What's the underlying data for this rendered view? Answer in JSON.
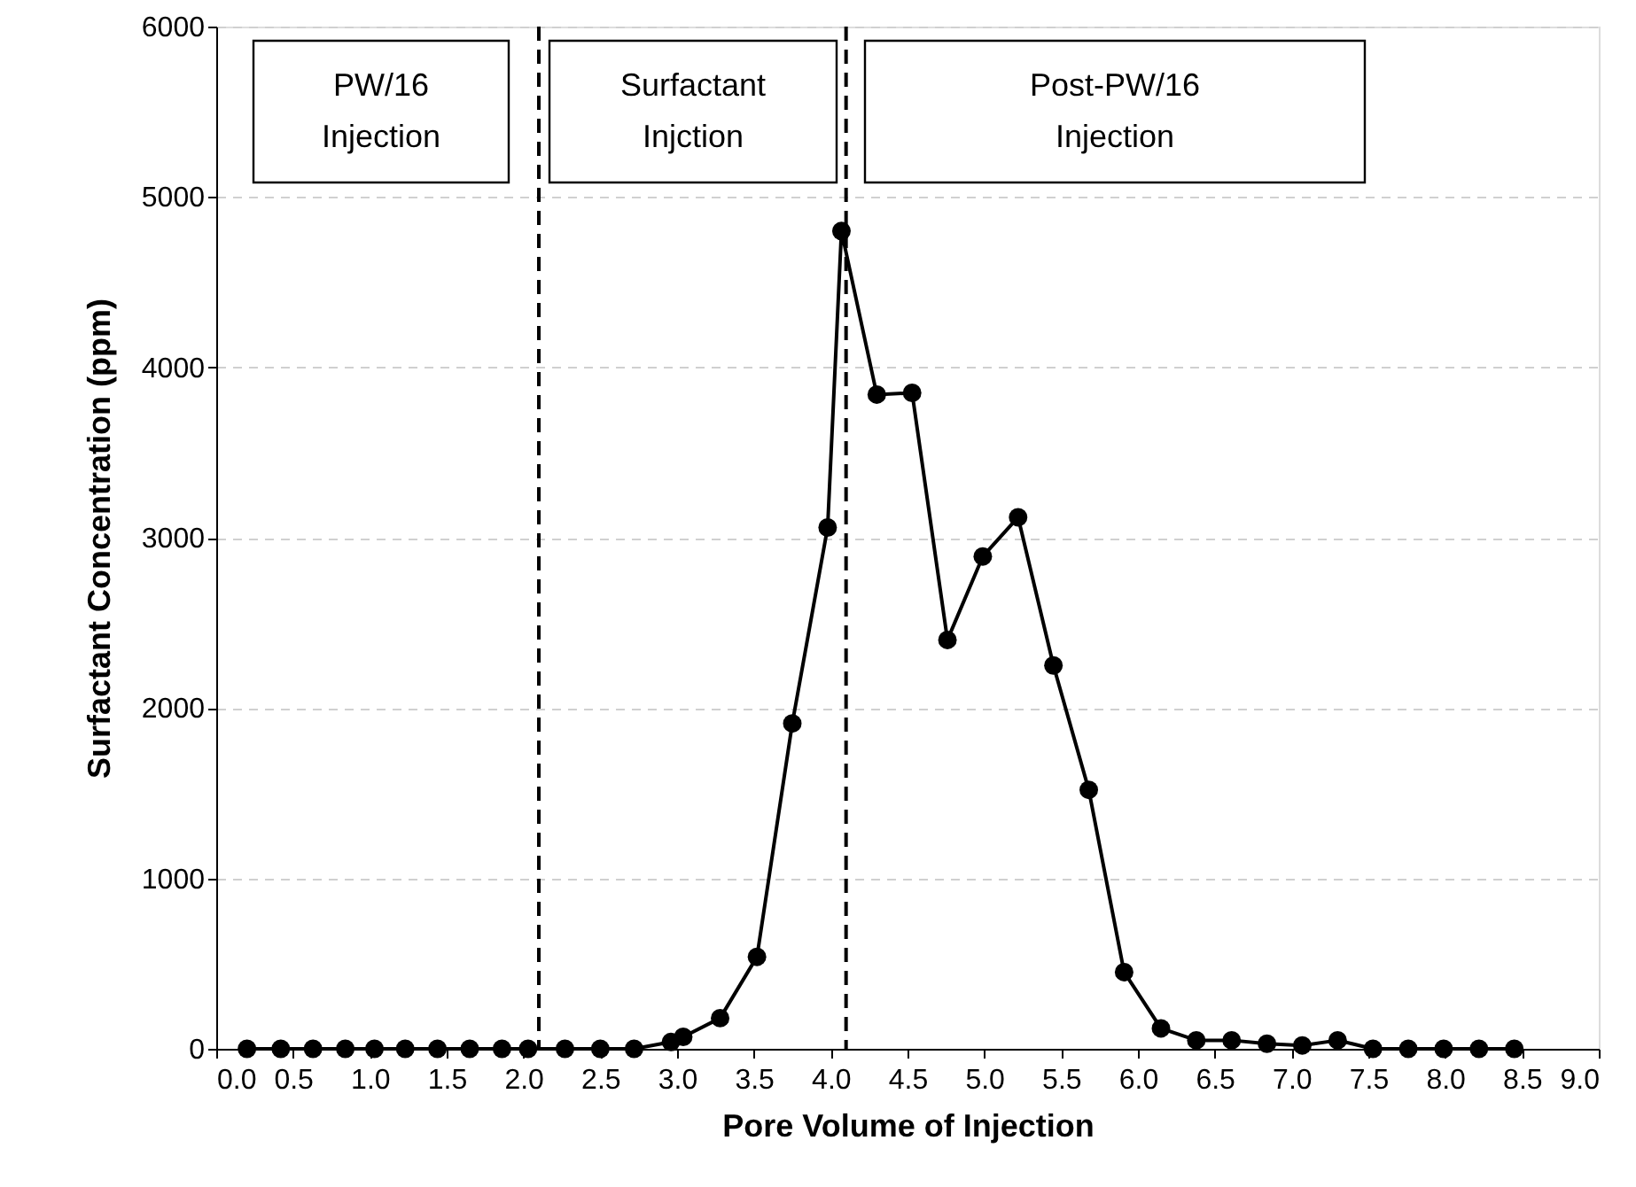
{
  "chart_data": {
    "type": "line",
    "xlabel": "Pore Volume of Injection",
    "ylabel": "Surfactant Concentration (ppm)",
    "x": [
      0.2,
      0.42,
      0.63,
      0.84,
      1.03,
      1.23,
      1.44,
      1.65,
      1.86,
      2.03,
      2.27,
      2.5,
      2.72,
      2.96,
      3.04,
      3.28,
      3.52,
      3.75,
      3.98,
      4.07,
      4.3,
      4.53,
      4.76,
      4.99,
      5.22,
      5.45,
      5.68,
      5.91,
      6.15,
      6.38,
      6.61,
      6.84,
      7.07,
      7.3,
      7.53,
      7.76,
      7.99,
      8.22,
      8.45
    ],
    "series": [
      {
        "color": "#000000",
        "values": [
          0,
          0,
          0,
          0,
          0,
          0,
          0,
          0,
          0,
          0,
          0,
          0,
          0,
          40,
          70,
          180,
          540,
          1910,
          3060,
          4800,
          3840,
          3850,
          2400,
          2890,
          3120,
          2250,
          1520,
          450,
          120,
          50,
          50,
          30,
          20,
          50,
          0,
          0,
          0,
          0,
          0
        ]
      }
    ],
    "xlim": [
      0,
      9
    ],
    "xticks": [
      {
        "value": 0,
        "label": "0.0"
      },
      {
        "value": 0.5,
        "label": "0.5"
      },
      {
        "value": 1,
        "label": "1.0"
      },
      {
        "value": 1.5,
        "label": "1.5"
      },
      {
        "value": 2,
        "label": "2.0"
      },
      {
        "value": 2.5,
        "label": "2.5"
      },
      {
        "value": 3,
        "label": "3.0"
      },
      {
        "value": 3.5,
        "label": "3.5"
      },
      {
        "value": 4,
        "label": "4.0"
      },
      {
        "value": 4.5,
        "label": "4.5"
      },
      {
        "value": 5,
        "label": "5.0"
      },
      {
        "value": 5.5,
        "label": "5.5"
      },
      {
        "value": 6,
        "label": "6.0"
      },
      {
        "value": 6.5,
        "label": "6.5"
      },
      {
        "value": 7,
        "label": "7.0"
      },
      {
        "value": 7.5,
        "label": "7.5"
      },
      {
        "value": 8,
        "label": "8.0"
      },
      {
        "value": 8.5,
        "label": "8.5"
      },
      {
        "value": 9,
        "label": "9.0"
      }
    ],
    "ylim": [
      0,
      6000
    ],
    "yticks": [
      0,
      1000,
      2000,
      3000,
      4000,
      5000,
      6000
    ],
    "grid": "y",
    "marker": "circle",
    "line_style": "solid",
    "ref_lines": [
      {
        "axis": "x",
        "value": 2.1,
        "color": "#000000",
        "line_style": "dashed"
      },
      {
        "axis": "x",
        "value": 4.1,
        "color": "#000000",
        "line_style": "dashed"
      }
    ],
    "annotations": [
      "PW/16\nInjection",
      "Surfactant\nInjction",
      "Post-PW/16\nInjection"
    ]
  }
}
